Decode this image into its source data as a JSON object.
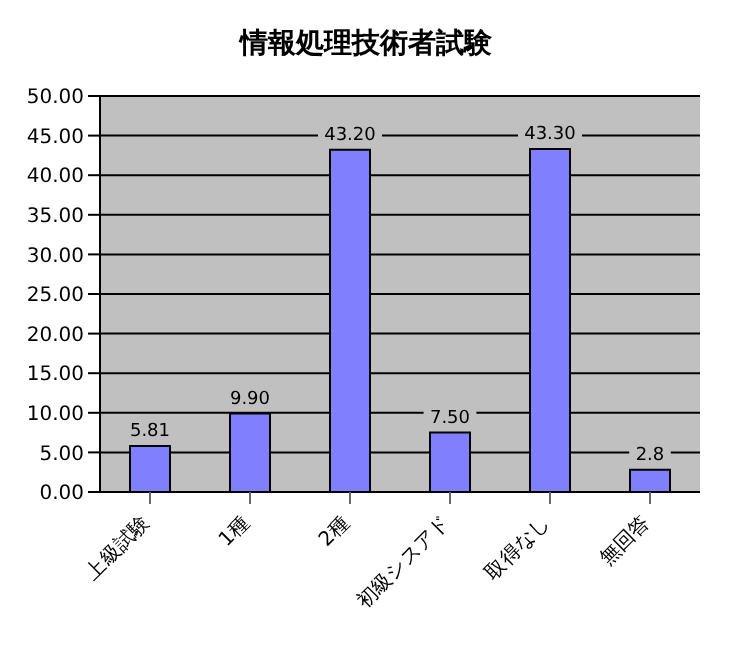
{
  "chart_data": {
    "type": "bar",
    "title": "情報処理技術者試験",
    "categories": [
      "上級試験",
      "1種",
      "2種",
      "初級シスアド",
      "取得なし",
      "無回答"
    ],
    "values": [
      5.81,
      9.9,
      43.2,
      7.5,
      43.3,
      2.8
    ],
    "value_labels": [
      "5.81",
      "9.90",
      "43.20",
      "7.50",
      "43.30",
      "2.8"
    ],
    "color": "#8080ff",
    "ylim": [
      0,
      50
    ],
    "yticks": [
      {
        "value": 0,
        "label": "0.00"
      },
      {
        "value": 5,
        "label": "5.00"
      },
      {
        "value": 10,
        "label": "10.00"
      },
      {
        "value": 15,
        "label": "15.00"
      },
      {
        "value": 20,
        "label": "20.00"
      },
      {
        "value": 25,
        "label": "25.00"
      },
      {
        "value": 30,
        "label": "30.00"
      },
      {
        "value": 35,
        "label": "35.00"
      },
      {
        "value": 40,
        "label": "40.00"
      },
      {
        "value": 45,
        "label": "45.00"
      },
      {
        "value": 50,
        "label": "50.00"
      }
    ],
    "grid": "y"
  }
}
